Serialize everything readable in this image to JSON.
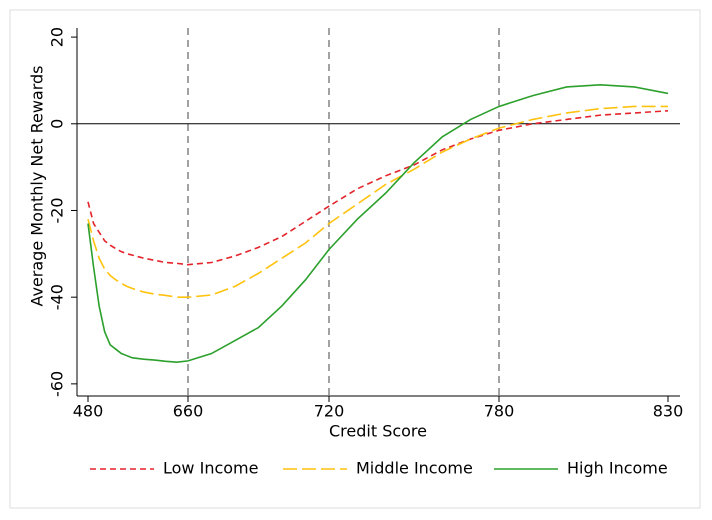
{
  "chart_data": {
    "type": "line",
    "x_label": "Credit Score",
    "y_label": "Average Monthly Net Rewards",
    "x": [
      480,
      490,
      500,
      510,
      520,
      530,
      540,
      550,
      560,
      580,
      600,
      620,
      640,
      660,
      670,
      680,
      690,
      700,
      710,
      720,
      730,
      740,
      750,
      760,
      770,
      780,
      790,
      800,
      810,
      820,
      830
    ],
    "series": [
      {
        "name": "Low Income",
        "color": "#e3242b",
        "dash": "dash",
        "values": [
          -18,
          -23,
          -25,
          -27,
          -28,
          -28.8,
          -29.5,
          -30,
          -30.3,
          -31,
          -31.5,
          -32,
          -32.2,
          -32.5,
          -32,
          -30.5,
          -28.5,
          -26,
          -22.5,
          -19,
          -15,
          -12,
          -9.5,
          -6,
          -3.5,
          -1.5,
          0,
          1,
          2,
          2.5,
          3
        ]
      },
      {
        "name": "Middle Income",
        "color": "#ffc20e",
        "dash": "longdash",
        "values": [
          -22,
          -27,
          -31,
          -33.5,
          -35,
          -36,
          -36.8,
          -37.5,
          -38,
          -38.8,
          -39.3,
          -39.6,
          -40,
          -40,
          -39.5,
          -37.5,
          -34.5,
          -31,
          -27.5,
          -23,
          -18.5,
          -14,
          -10.5,
          -6.5,
          -3.5,
          -1,
          1,
          2.5,
          3.5,
          4,
          4
        ]
      },
      {
        "name": "High Income",
        "color": "#2ca02c",
        "dash": "solid",
        "values": [
          -23,
          -33,
          -42,
          -48,
          -51,
          -52,
          -53,
          -53.5,
          -54,
          -54.3,
          -54.5,
          -54.8,
          -55,
          -54.7,
          -53,
          -50,
          -47,
          -42,
          -36,
          -29,
          -22,
          -16,
          -9,
          -3,
          1,
          4,
          6.5,
          8.5,
          9,
          8.5,
          7
        ]
      }
    ],
    "xlim": [
      480,
      830
    ],
    "xticks": [
      480,
      660,
      720,
      780,
      830
    ],
    "ylim": [
      -62.8,
      22.1
    ],
    "yticks": [
      20,
      0,
      -20,
      -40,
      -60
    ],
    "vlines": [
      660,
      720,
      780
    ],
    "hline": 0,
    "legend": "bottom"
  }
}
